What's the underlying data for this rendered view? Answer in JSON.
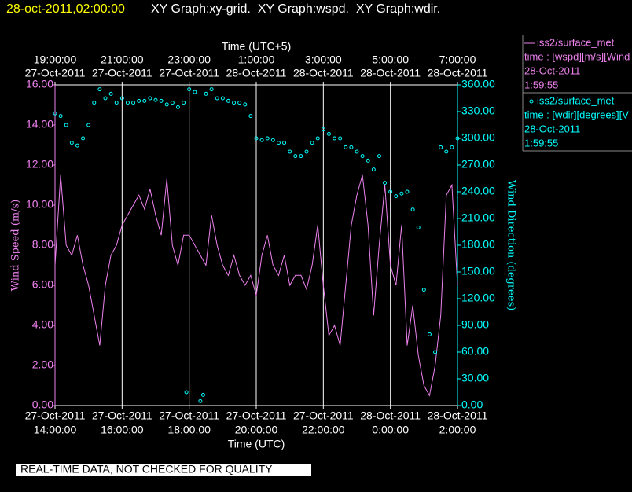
{
  "chart_data": {
    "type": "line-scatter",
    "timestamp": "28-oct-2011,02:00:00",
    "title": "XY Graph:xy-grid.  XY Graph:wspd.  XY Graph:wdir.",
    "x2label": "Time (UTC+5)",
    "xlabel": "Time (UTC)",
    "ylabel": "Wind Speed (m/s)",
    "y2label": "Wind Direction (degrees)",
    "footnote": "REAL-TIME DATA, NOT CHECKED FOR QUALITY",
    "grid": true,
    "xlim": [
      "2011-10-27T14:00",
      "2011-10-28T02:00"
    ],
    "xticks": [
      {
        "value": "2011-10-27T14:00",
        "label": [
          "27-Oct-2011",
          "14:00:00"
        ]
      },
      {
        "value": "2011-10-27T16:00",
        "label": [
          "27-Oct-2011",
          "16:00:00"
        ]
      },
      {
        "value": "2011-10-27T18:00",
        "label": [
          "27-Oct-2011",
          "18:00:00"
        ]
      },
      {
        "value": "2011-10-27T20:00",
        "label": [
          "27-Oct-2011",
          "20:00:00"
        ]
      },
      {
        "value": "2011-10-27T22:00",
        "label": [
          "27-Oct-2011",
          "22:00:00"
        ]
      },
      {
        "value": "2011-10-28T00:00",
        "label": [
          "28-Oct-2011",
          "0:00:00"
        ]
      },
      {
        "value": "2011-10-28T02:00",
        "label": [
          "28-Oct-2011",
          "2:00:00"
        ]
      }
    ],
    "x2ticks": [
      {
        "value": "2011-10-27T14:00",
        "label": [
          "19:00:00",
          "27-Oct-2011"
        ]
      },
      {
        "value": "2011-10-27T16:00",
        "label": [
          "21:00:00",
          "27-Oct-2011"
        ]
      },
      {
        "value": "2011-10-27T18:00",
        "label": [
          "23:00:00",
          "27-Oct-2011"
        ]
      },
      {
        "value": "2011-10-27T20:00",
        "label": [
          "1:00:00",
          "28-Oct-2011"
        ]
      },
      {
        "value": "2011-10-27T22:00",
        "label": [
          "3:00:00",
          "28-Oct-2011"
        ]
      },
      {
        "value": "2011-10-28T00:00",
        "label": [
          "5:00:00",
          "28-Oct-2011"
        ]
      },
      {
        "value": "2011-10-28T02:00",
        "label": [
          "7:00:00",
          "28-Oct-2011"
        ]
      }
    ],
    "ylim": [
      0,
      16
    ],
    "yticks": [
      {
        "value": 0,
        "label": "0.00"
      },
      {
        "value": 2,
        "label": "2.00"
      },
      {
        "value": 4,
        "label": "4.00"
      },
      {
        "value": 6,
        "label": "6.00"
      },
      {
        "value": 8,
        "label": "8.00"
      },
      {
        "value": 10,
        "label": "10.00"
      },
      {
        "value": 12,
        "label": "12.00"
      },
      {
        "value": 14,
        "label": "14.00"
      },
      {
        "value": 16,
        "label": "16.00"
      }
    ],
    "y2lim": [
      0,
      360
    ],
    "y2ticks": [
      {
        "value": 0,
        "label": "0.00"
      },
      {
        "value": 30,
        "label": "30.00"
      },
      {
        "value": 60,
        "label": "60.00"
      },
      {
        "value": 90,
        "label": "90.00"
      },
      {
        "value": 120,
        "label": "120.00"
      },
      {
        "value": 150,
        "label": "150.00"
      },
      {
        "value": 180,
        "label": "180.00"
      },
      {
        "value": 210,
        "label": "210.00"
      },
      {
        "value": 240,
        "label": "240.00"
      },
      {
        "value": 270,
        "label": "270.00"
      },
      {
        "value": 300,
        "label": "300.00"
      },
      {
        "value": 330,
        "label": "330.00"
      },
      {
        "value": 360,
        "label": "360.00"
      }
    ],
    "series": [
      {
        "name": "iss2/surface_met",
        "legend_lines": [
          "time : [wspd][m/s][Wind",
          "28-Oct-2011",
          "1:59:55"
        ],
        "color": "#ee82ee",
        "kind": "line",
        "x": [
          "2011-10-27T14:00",
          "2011-10-27T14:10",
          "2011-10-27T14:20",
          "2011-10-27T14:30",
          "2011-10-27T14:40",
          "2011-10-27T14:50",
          "2011-10-27T15:00",
          "2011-10-27T15:10",
          "2011-10-27T15:20",
          "2011-10-27T15:30",
          "2011-10-27T15:40",
          "2011-10-27T15:50",
          "2011-10-27T16:00",
          "2011-10-27T16:10",
          "2011-10-27T16:20",
          "2011-10-27T16:30",
          "2011-10-27T16:40",
          "2011-10-27T16:50",
          "2011-10-27T17:00",
          "2011-10-27T17:10",
          "2011-10-27T17:20",
          "2011-10-27T17:30",
          "2011-10-27T17:40",
          "2011-10-27T17:50",
          "2011-10-27T18:00",
          "2011-10-27T18:10",
          "2011-10-27T18:20",
          "2011-10-27T18:30",
          "2011-10-27T18:40",
          "2011-10-27T18:50",
          "2011-10-27T19:00",
          "2011-10-27T19:10",
          "2011-10-27T19:20",
          "2011-10-27T19:30",
          "2011-10-27T19:40",
          "2011-10-27T19:50",
          "2011-10-27T20:00",
          "2011-10-27T20:10",
          "2011-10-27T20:20",
          "2011-10-27T20:30",
          "2011-10-27T20:40",
          "2011-10-27T20:50",
          "2011-10-27T21:00",
          "2011-10-27T21:10",
          "2011-10-27T21:20",
          "2011-10-27T21:30",
          "2011-10-27T21:40",
          "2011-10-27T21:50",
          "2011-10-27T22:00",
          "2011-10-27T22:10",
          "2011-10-27T22:20",
          "2011-10-27T22:30",
          "2011-10-27T22:40",
          "2011-10-27T22:50",
          "2011-10-27T23:00",
          "2011-10-27T23:10",
          "2011-10-27T23:20",
          "2011-10-27T23:30",
          "2011-10-27T23:40",
          "2011-10-27T23:50",
          "2011-10-28T00:00",
          "2011-10-28T00:10",
          "2011-10-28T00:20",
          "2011-10-28T00:30",
          "2011-10-28T00:40",
          "2011-10-28T00:50",
          "2011-10-28T01:00",
          "2011-10-28T01:10",
          "2011-10-28T01:20",
          "2011-10-28T01:30",
          "2011-10-28T01:40",
          "2011-10-28T01:50",
          "2011-10-28T02:00"
        ],
        "values": [
          7.0,
          11.5,
          8.0,
          7.5,
          8.5,
          7.0,
          6.0,
          4.5,
          3.0,
          6.0,
          7.5,
          8.0,
          9.0,
          9.5,
          10.0,
          10.5,
          9.8,
          10.8,
          9.5,
          8.5,
          11.3,
          8.0,
          7.0,
          8.5,
          8.5,
          8.0,
          7.5,
          7.0,
          9.5,
          8.0,
          7.0,
          6.5,
          7.5,
          6.5,
          6.0,
          6.5,
          5.5,
          7.5,
          8.5,
          7.0,
          6.5,
          7.5,
          6.0,
          6.5,
          6.5,
          5.8,
          7.0,
          9.0,
          6.0,
          3.5,
          4.0,
          3.0,
          6.0,
          9.0,
          10.5,
          11.5,
          9.0,
          4.5,
          8.0,
          11.0,
          7.0,
          6.0,
          9.0,
          3.0,
          5.0,
          2.5,
          1.0,
          0.5,
          2.0,
          4.5,
          10.5,
          11.0,
          6.0
        ]
      },
      {
        "name": "iss2/surface_met",
        "legend_lines": [
          "time : [wdir][degrees][V",
          "28-Oct-2011",
          "1:59:55"
        ],
        "color": "#00ffff",
        "kind": "scatter",
        "axis": "y2",
        "x": [
          "2011-10-27T14:00",
          "2011-10-27T14:10",
          "2011-10-27T14:20",
          "2011-10-27T14:30",
          "2011-10-27T14:40",
          "2011-10-27T14:50",
          "2011-10-27T15:00",
          "2011-10-27T15:10",
          "2011-10-27T15:20",
          "2011-10-27T15:30",
          "2011-10-27T15:40",
          "2011-10-27T15:50",
          "2011-10-27T16:00",
          "2011-10-27T16:10",
          "2011-10-27T16:20",
          "2011-10-27T16:30",
          "2011-10-27T16:40",
          "2011-10-27T16:50",
          "2011-10-27T17:00",
          "2011-10-27T17:10",
          "2011-10-27T17:20",
          "2011-10-27T17:30",
          "2011-10-27T17:40",
          "2011-10-27T17:50",
          "2011-10-27T17:55",
          "2011-10-27T18:00",
          "2011-10-27T18:10",
          "2011-10-27T18:20",
          "2011-10-27T18:25",
          "2011-10-27T18:30",
          "2011-10-27T18:40",
          "2011-10-27T18:50",
          "2011-10-27T19:00",
          "2011-10-27T19:10",
          "2011-10-27T19:20",
          "2011-10-27T19:30",
          "2011-10-27T19:40",
          "2011-10-27T19:50",
          "2011-10-27T20:00",
          "2011-10-27T20:10",
          "2011-10-27T20:20",
          "2011-10-27T20:30",
          "2011-10-27T20:40",
          "2011-10-27T20:50",
          "2011-10-27T21:00",
          "2011-10-27T21:10",
          "2011-10-27T21:20",
          "2011-10-27T21:30",
          "2011-10-27T21:40",
          "2011-10-27T21:50",
          "2011-10-27T22:00",
          "2011-10-27T22:10",
          "2011-10-27T22:20",
          "2011-10-27T22:30",
          "2011-10-27T22:40",
          "2011-10-27T22:50",
          "2011-10-27T23:00",
          "2011-10-27T23:10",
          "2011-10-27T23:20",
          "2011-10-27T23:30",
          "2011-10-27T23:40",
          "2011-10-27T23:50",
          "2011-10-28T00:00",
          "2011-10-28T00:10",
          "2011-10-28T00:20",
          "2011-10-28T00:30",
          "2011-10-28T00:40",
          "2011-10-28T00:50",
          "2011-10-28T01:00",
          "2011-10-28T01:10",
          "2011-10-28T01:20",
          "2011-10-28T01:30",
          "2011-10-28T01:40",
          "2011-10-28T01:50",
          "2011-10-28T02:00"
        ],
        "values": [
          328,
          325,
          315,
          295,
          292,
          300,
          315,
          340,
          355,
          345,
          350,
          340,
          345,
          340,
          340,
          342,
          342,
          345,
          343,
          342,
          338,
          340,
          335,
          340,
          15,
          355,
          352,
          5,
          12,
          350,
          355,
          345,
          345,
          342,
          340,
          340,
          338,
          325,
          300,
          298,
          300,
          298,
          295,
          295,
          285,
          280,
          280,
          285,
          295,
          300,
          310,
          305,
          300,
          300,
          290,
          290,
          285,
          280,
          275,
          265,
          280,
          250,
          240,
          235,
          238,
          240,
          220,
          200,
          130,
          80,
          60,
          290,
          285,
          290,
          300
        ]
      }
    ]
  }
}
